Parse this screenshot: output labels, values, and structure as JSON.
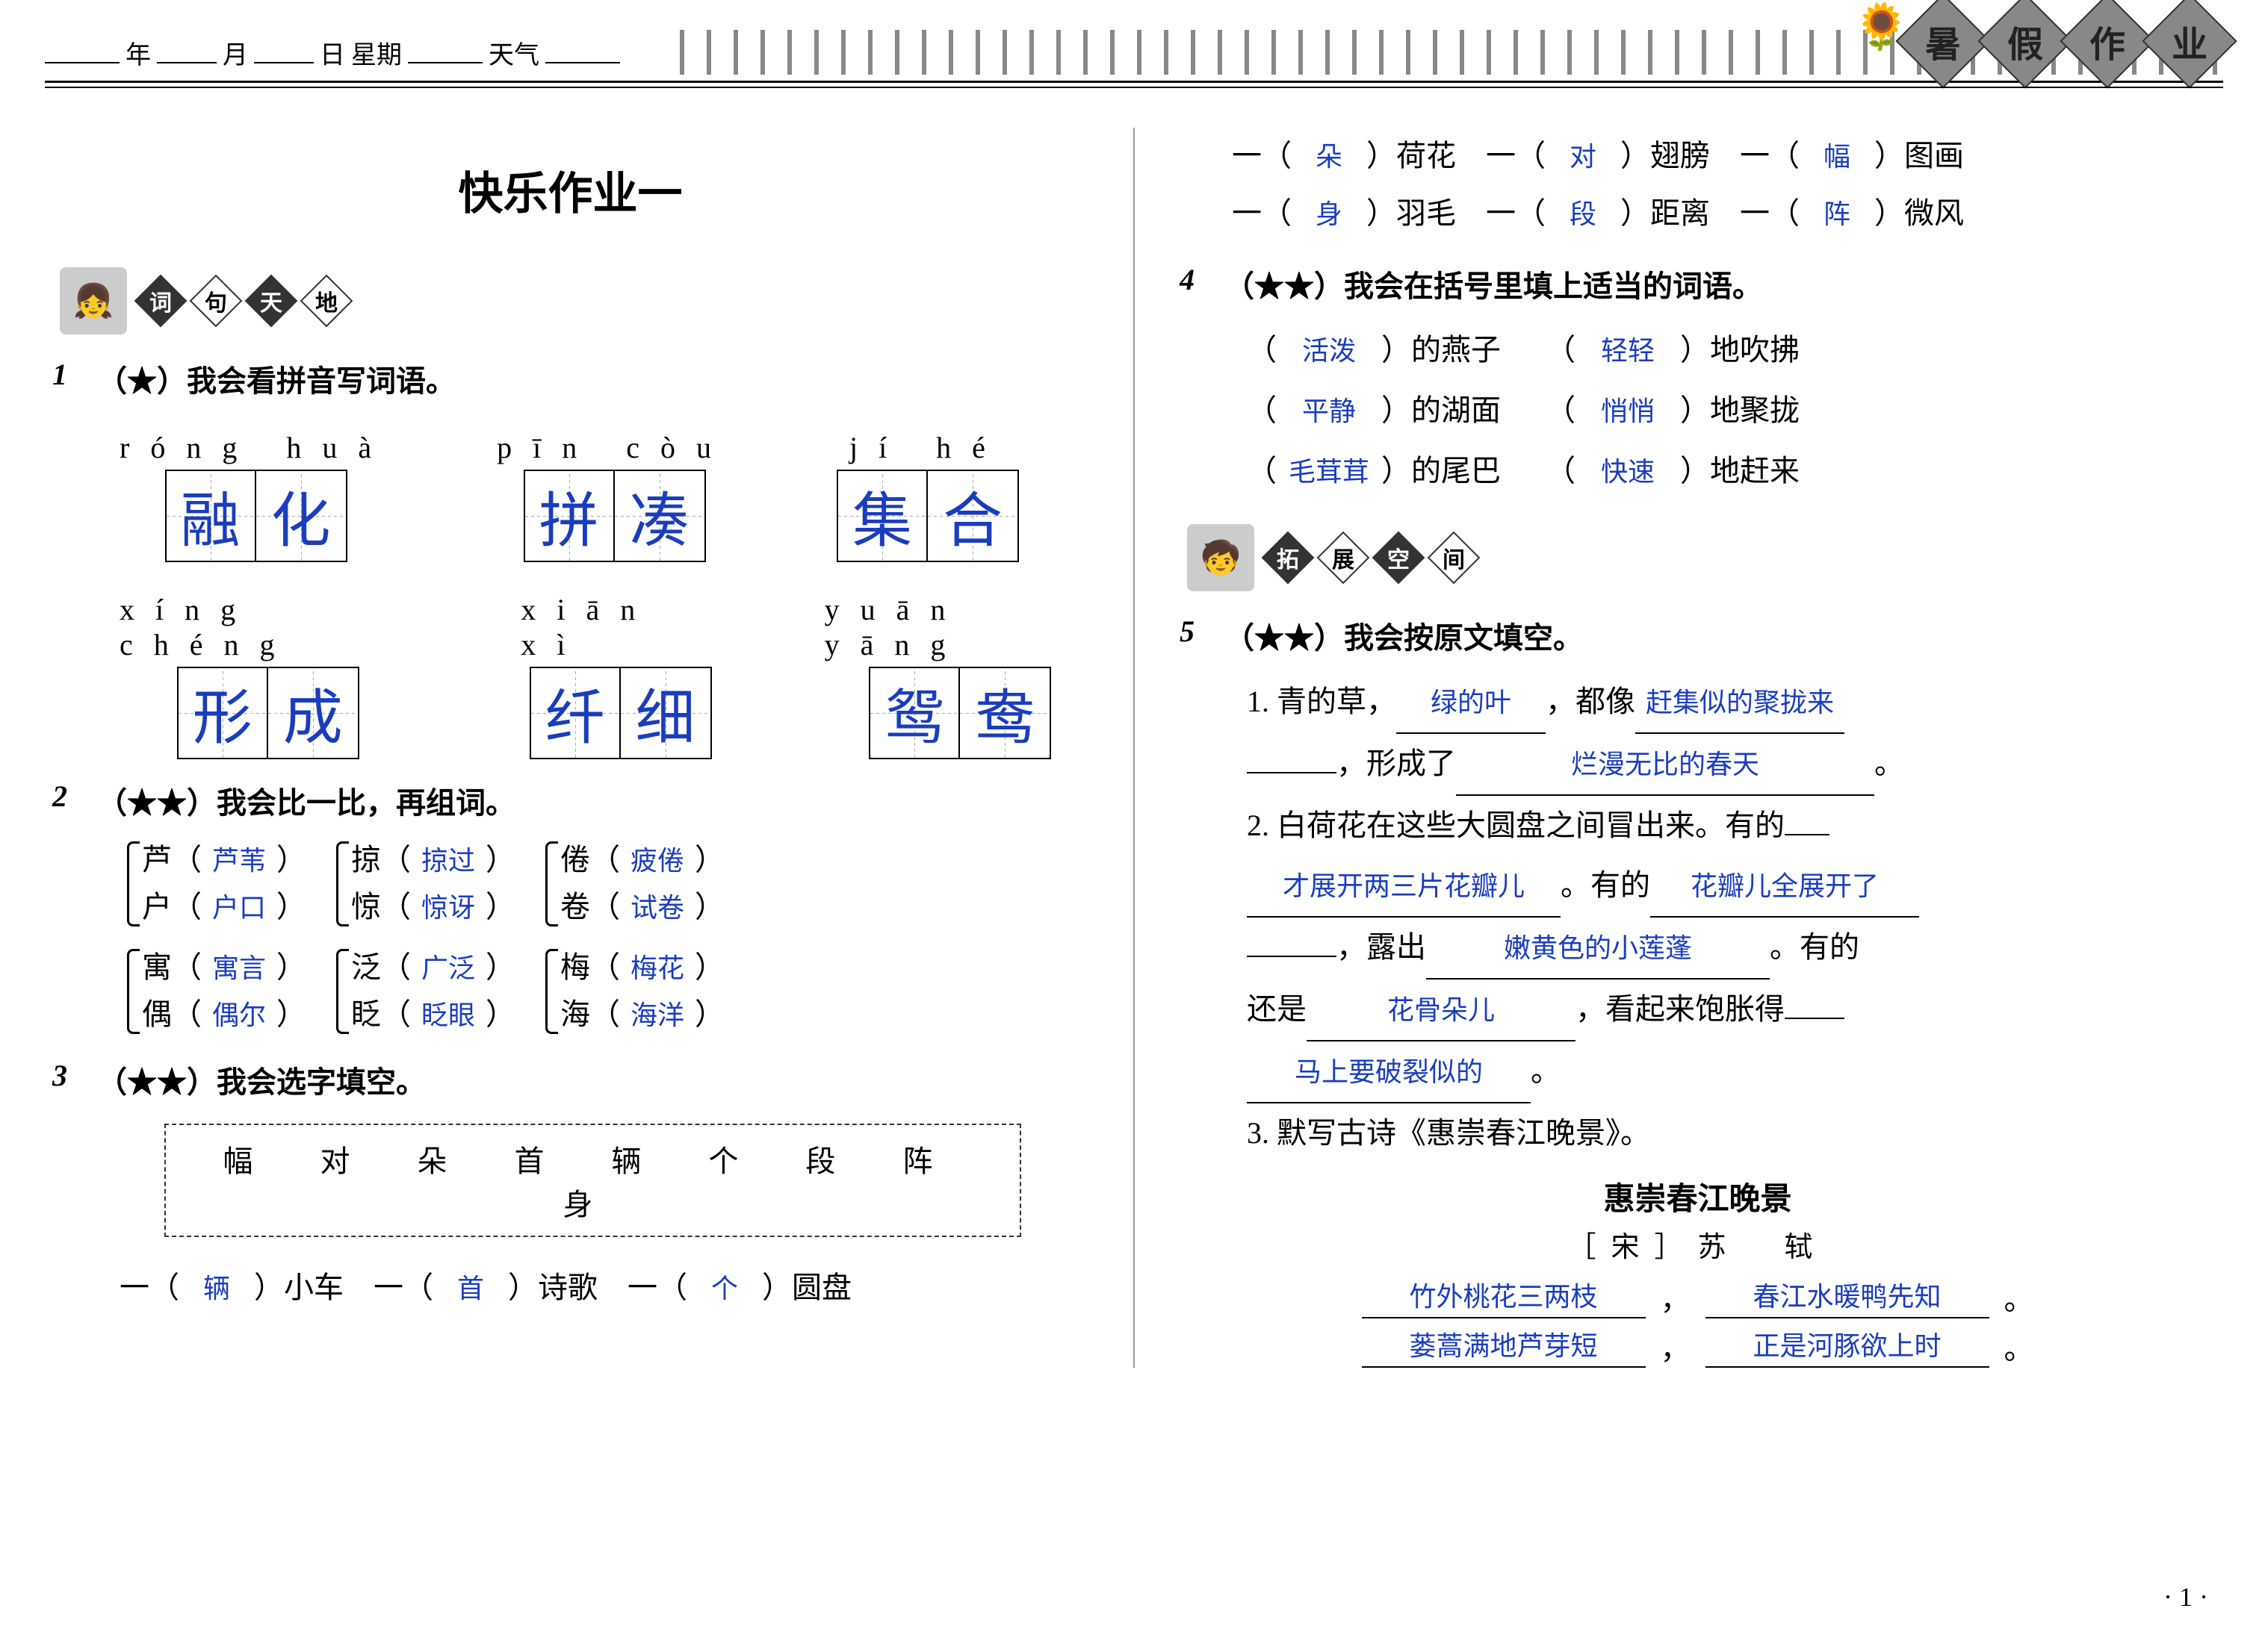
{
  "header": {
    "labels": {
      "year": "年",
      "month": "月",
      "day": "日",
      "weekday": "星期",
      "weather": "天气"
    },
    "banner_chars": [
      "暑",
      "假",
      "作",
      "业"
    ]
  },
  "title": "快乐作业一",
  "section1_label": [
    "词",
    "句",
    "天",
    "地"
  ],
  "section2_label": [
    "拓",
    "展",
    "空",
    "间"
  ],
  "q1": {
    "num": "1",
    "text": "（★）我会看拼音写词语。",
    "row1": [
      {
        "pinyin": "róng  huà",
        "chars": [
          "融",
          "化"
        ]
      },
      {
        "pinyin": "pīn   còu",
        "chars": [
          "拼",
          "凑"
        ]
      },
      {
        "pinyin": "jí    hé",
        "chars": [
          "集",
          "合"
        ]
      }
    ],
    "row2": [
      {
        "pinyin": "xíng chéng",
        "chars": [
          "形",
          "成"
        ]
      },
      {
        "pinyin": "xiān   xì",
        "chars": [
          "纤",
          "细"
        ]
      },
      {
        "pinyin": "yuān yāng",
        "chars": [
          "鸳",
          "鸯"
        ]
      }
    ]
  },
  "q2": {
    "num": "2",
    "text": "（★★）我会比一比，再组词。",
    "groups": [
      [
        {
          "c": "芦",
          "w": "芦苇"
        },
        {
          "c": "户",
          "w": "户口"
        }
      ],
      [
        {
          "c": "掠",
          "w": "掠过"
        },
        {
          "c": "惊",
          "w": "惊讶"
        }
      ],
      [
        {
          "c": "倦",
          "w": "疲倦"
        },
        {
          "c": "卷",
          "w": "试卷"
        }
      ],
      [
        {
          "c": "寓",
          "w": "寓言"
        },
        {
          "c": "偶",
          "w": "偶尔"
        }
      ],
      [
        {
          "c": "泛",
          "w": "广泛"
        },
        {
          "c": "眨",
          "w": "眨眼"
        }
      ],
      [
        {
          "c": "梅",
          "w": "梅花"
        },
        {
          "c": "海",
          "w": "海洋"
        }
      ]
    ]
  },
  "q3": {
    "num": "3",
    "text": "（★★）我会选字填空。",
    "bank": "幅 对 朵 首 辆 个 段 阵 身",
    "items": [
      {
        "a": "辆",
        "t": "小车"
      },
      {
        "a": "首",
        "t": "诗歌"
      },
      {
        "a": "个",
        "t": "圆盘"
      },
      {
        "a": "朵",
        "t": "荷花"
      },
      {
        "a": "对",
        "t": "翅膀"
      },
      {
        "a": "幅",
        "t": "图画"
      },
      {
        "a": "身",
        "t": "羽毛"
      },
      {
        "a": "段",
        "t": "距离"
      },
      {
        "a": "阵",
        "t": "微风"
      }
    ]
  },
  "q4": {
    "num": "4",
    "text": "（★★）我会在括号里填上适当的词语。",
    "rows": [
      [
        {
          "a": "活泼",
          "t": "的燕子"
        },
        {
          "a": "轻轻",
          "t": "地吹拂"
        }
      ],
      [
        {
          "a": "平静",
          "t": "的湖面"
        },
        {
          "a": "悄悄",
          "t": "地聚拢"
        }
      ],
      [
        {
          "a": "毛茸茸",
          "t": "的尾巴"
        },
        {
          "a": "快速",
          "t": "地赶来"
        }
      ]
    ]
  },
  "q5": {
    "num": "5",
    "text": "（★★）我会按原文填空。",
    "p1": {
      "lead1": "1. 青的草，",
      "a1": "绿的叶",
      "mid1": "，都像",
      "a2": "赶集似的聚拢来",
      "lead2": "，形成了",
      "a3": "烂漫无比的春天",
      "tail": "。"
    },
    "p2": {
      "lead1": "2. 白荷花在这些大圆盘之间冒出来。有的",
      "a1": "才展开两三片花瓣儿",
      "mid1": "。有的",
      "a2": "花瓣儿全展开了",
      "mid2": "，露出",
      "a3": "嫩黄色的小莲蓬",
      "mid3": "。有的",
      "lead2": "还是",
      "a4": "花骨朵儿",
      "mid4": "，看起来饱胀得",
      "a5": "马上要破裂似的",
      "tail": "。"
    },
    "p3": {
      "lead": "3. 默写古诗《惠崇春江晚景》。",
      "title": "惠崇春江晚景",
      "author": "［宋］苏　轼",
      "l1": "竹外桃花三两枝",
      "l2": "春江水暖鸭先知",
      "l3": "蒌蒿满地芦芽短",
      "l4": "正是河豚欲上时"
    }
  },
  "page_num": "· 1 ·"
}
